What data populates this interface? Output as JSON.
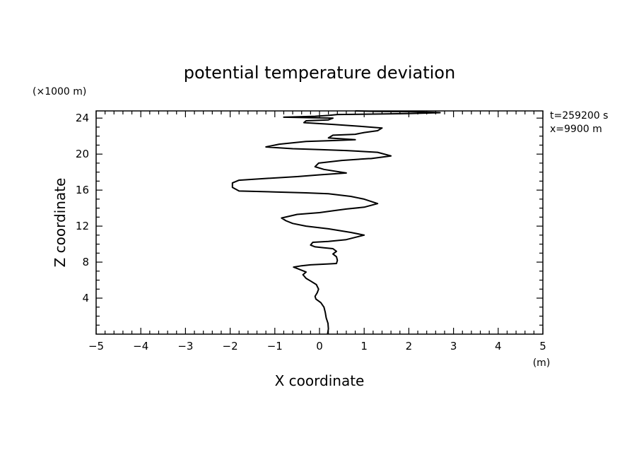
{
  "chart_data": {
    "type": "line",
    "title": "potential temperature deviation",
    "xlabel": "X coordinate",
    "ylabel": "Z coordinate",
    "x_unit": "(m)",
    "y_unit": "(×1000 m)",
    "annotations": [
      "t=259200 s",
      "x=9900 m"
    ],
    "xlim": [
      -5,
      5
    ],
    "ylim": [
      0,
      24.8
    ],
    "x_ticks": [
      -5,
      -4,
      -3,
      -2,
      -1,
      0,
      1,
      2,
      3,
      4,
      5
    ],
    "x_tick_labels": [
      "−5",
      "−4",
      "−3",
      "−2",
      "−1",
      "0",
      "1",
      "2",
      "3",
      "4",
      "5"
    ],
    "y_ticks": [
      4,
      8,
      12,
      16,
      20,
      24
    ],
    "y_tick_labels": [
      "4",
      "8",
      "12",
      "16",
      "20",
      "24"
    ],
    "grid": false,
    "series": [
      {
        "points": [
          [
            0.18,
            0.0
          ],
          [
            0.2,
            0.6
          ],
          [
            0.19,
            1.2
          ],
          [
            0.15,
            1.8
          ],
          [
            0.13,
            2.4
          ],
          [
            0.1,
            3.0
          ],
          [
            0.03,
            3.5
          ],
          [
            -0.08,
            3.9
          ],
          [
            -0.1,
            4.2
          ],
          [
            -0.05,
            4.6
          ],
          [
            -0.02,
            5.0
          ],
          [
            -0.07,
            5.5
          ],
          [
            -0.2,
            5.9
          ],
          [
            -0.3,
            6.2
          ],
          [
            -0.37,
            6.6
          ],
          [
            -0.3,
            6.9
          ],
          [
            -0.45,
            7.2
          ],
          [
            -0.58,
            7.45
          ],
          [
            -0.4,
            7.6
          ],
          [
            -0.2,
            7.7
          ],
          [
            0.0,
            7.75
          ],
          [
            0.2,
            7.8
          ],
          [
            0.38,
            7.85
          ],
          [
            0.4,
            8.2
          ],
          [
            0.38,
            8.6
          ],
          [
            0.3,
            8.9
          ],
          [
            0.38,
            9.2
          ],
          [
            0.3,
            9.5
          ],
          [
            0.1,
            9.6
          ],
          [
            -0.1,
            9.7
          ],
          [
            -0.2,
            9.9
          ],
          [
            -0.15,
            10.2
          ],
          [
            0.2,
            10.3
          ],
          [
            0.6,
            10.5
          ],
          [
            1.0,
            11.0
          ],
          [
            0.7,
            11.3
          ],
          [
            0.2,
            11.7
          ],
          [
            -0.3,
            12.0
          ],
          [
            -0.6,
            12.3
          ],
          [
            -0.75,
            12.6
          ],
          [
            -0.85,
            12.9
          ],
          [
            -0.5,
            13.3
          ],
          [
            0.0,
            13.5
          ],
          [
            0.3,
            13.7
          ],
          [
            0.6,
            13.9
          ],
          [
            1.0,
            14.1
          ],
          [
            1.3,
            14.5
          ],
          [
            1.0,
            15.0
          ],
          [
            0.7,
            15.3
          ],
          [
            0.2,
            15.6
          ],
          [
            -0.3,
            15.7
          ],
          [
            -1.0,
            15.8
          ],
          [
            -1.8,
            15.9
          ],
          [
            -1.95,
            16.3
          ],
          [
            -1.95,
            16.8
          ],
          [
            -1.8,
            17.1
          ],
          [
            -1.2,
            17.3
          ],
          [
            -0.5,
            17.5
          ],
          [
            0.0,
            17.7
          ],
          [
            0.6,
            17.9
          ],
          [
            0.1,
            18.3
          ],
          [
            -0.1,
            18.6
          ],
          [
            -0.02,
            19.0
          ],
          [
            0.5,
            19.3
          ],
          [
            1.1,
            19.5
          ],
          [
            1.15,
            19.5
          ],
          [
            1.6,
            19.8
          ],
          [
            1.3,
            20.2
          ],
          [
            0.6,
            20.4
          ],
          [
            0.0,
            20.5
          ],
          [
            -0.6,
            20.6
          ],
          [
            -1.2,
            20.8
          ],
          [
            -0.9,
            21.1
          ],
          [
            -0.3,
            21.4
          ],
          [
            0.3,
            21.5
          ],
          [
            0.8,
            21.6
          ],
          [
            0.2,
            21.8
          ],
          [
            0.3,
            22.1
          ],
          [
            0.8,
            22.2
          ],
          [
            1.0,
            22.4
          ],
          [
            1.3,
            22.6
          ],
          [
            1.4,
            22.9
          ],
          [
            0.9,
            23.1
          ],
          [
            0.3,
            23.3
          ],
          [
            -0.35,
            23.5
          ],
          [
            -0.3,
            23.7
          ],
          [
            0.2,
            23.8
          ],
          [
            0.3,
            24.0
          ],
          [
            -0.8,
            24.1
          ],
          [
            -0.1,
            24.2
          ],
          [
            0.2,
            24.3
          ],
          [
            0.4,
            24.4
          ],
          [
            1.2,
            24.45
          ],
          [
            2.0,
            24.5
          ],
          [
            2.7,
            24.6
          ],
          [
            2.2,
            24.7
          ],
          [
            1.2,
            24.75
          ],
          [
            0.8,
            24.8
          ]
        ]
      }
    ]
  }
}
